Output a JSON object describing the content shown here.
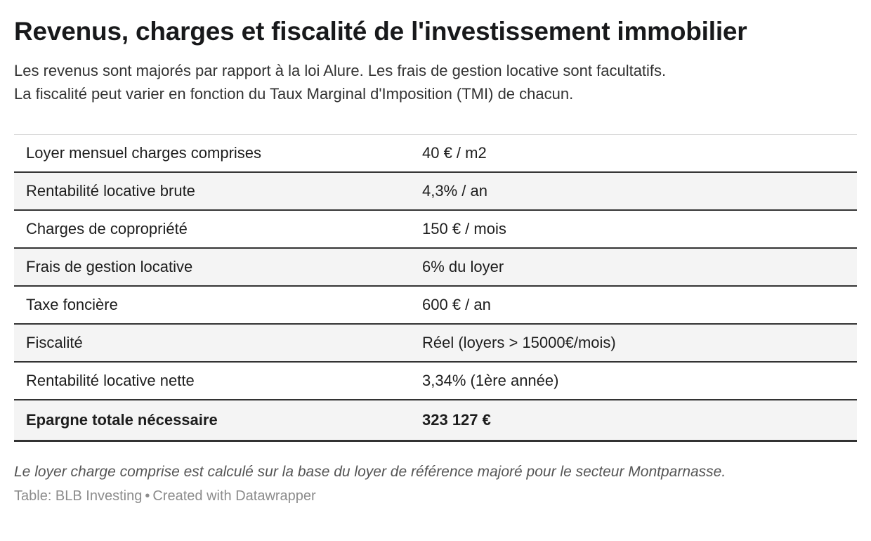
{
  "header": {
    "title": "Revenus, charges et fiscalité de l'investissement immobilier",
    "description": [
      "Les revenus sont majorés par rapport à la loi Alure. Les frais de gestion locative sont facultatifs.",
      "La fiscalité peut varier en fonction du Taux Marginal d'Imposition (TMI) de chacun."
    ]
  },
  "chart_data": {
    "type": "table",
    "title": "Revenus, charges et fiscalité de l'investissement immobilier",
    "rows": [
      {
        "label": "Loyer mensuel charges comprises",
        "value": "40 € / m2",
        "bold": false
      },
      {
        "label": "Rentabilité locative brute",
        "value": "4,3% / an",
        "bold": false
      },
      {
        "label": "Charges de copropriété",
        "value": "150 € / mois",
        "bold": false
      },
      {
        "label": "Frais de gestion locative",
        "value": "6% du loyer",
        "bold": false
      },
      {
        "label": "Taxe foncière",
        "value": "600 € / an",
        "bold": false
      },
      {
        "label": "Fiscalité",
        "value": "Réel (loyers > 15000€/mois)",
        "bold": false
      },
      {
        "label": "Rentabilité locative nette",
        "value": "3,34% (1ère année)",
        "bold": false
      },
      {
        "label": "Epargne totale nécessaire",
        "value": "323 127 €",
        "bold": true
      }
    ],
    "layout_hints": {
      "zebra_striping": true,
      "first_row_background": "white",
      "row_separator_color": "#333333",
      "zebra_color": "#f4f4f4"
    }
  },
  "footer": {
    "note": "Le loyer charge comprise est calculé sur la base du loyer de référence majoré pour le secteur Montparnasse.",
    "source": "Table: BLB Investing",
    "separator": "•",
    "credit": "Created with Datawrapper"
  },
  "colors": {
    "row_border": "#333333",
    "zebra_row": "#f4f4f4",
    "title_text": "#18191b",
    "note_text": "#555555",
    "attribution_text": "#8c8c8c"
  }
}
